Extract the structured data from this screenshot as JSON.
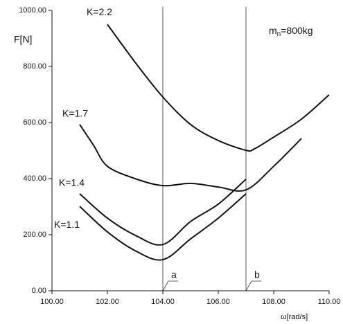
{
  "chart_data": {
    "type": "line",
    "y_label": "F[N]",
    "x_label": "ω[rad/s]",
    "annotation": {
      "main": "m",
      "sub": "n",
      "rest": "=800kg"
    },
    "markers": [
      {
        "x": 104,
        "label": "a"
      },
      {
        "x": 107,
        "label": "b"
      }
    ],
    "xlim": [
      100,
      110
    ],
    "xticks": [
      {
        "value": 100,
        "label": "100.00"
      },
      {
        "value": 102,
        "label": "102.00"
      },
      {
        "value": 104,
        "label": "104.00"
      },
      {
        "value": 106,
        "label": "106.00"
      },
      {
        "value": 108,
        "label": "108.00"
      },
      {
        "value": 110,
        "label": "110.00"
      }
    ],
    "ylim": [
      0,
      1000
    ],
    "yticks": [
      {
        "value": 0,
        "label": "0.00"
      },
      {
        "value": 200,
        "label": "200.00"
      },
      {
        "value": 400,
        "label": "400.00"
      },
      {
        "value": 600,
        "label": "600.00"
      },
      {
        "value": 800,
        "label": "800.00"
      },
      {
        "value": 1000,
        "label": "1000.00"
      }
    ],
    "series": [
      {
        "name": "K=2.2",
        "color": "#111111",
        "x": [
          102,
          103,
          104,
          105,
          106,
          107,
          107.3,
          108,
          109,
          110
        ],
        "values": [
          950,
          815,
          691,
          593,
          536,
          501,
          506,
          548,
          612,
          699
        ]
      },
      {
        "name": "K=1.7",
        "color": "#111111",
        "x": [
          101,
          101.5,
          102,
          103,
          104,
          105,
          106,
          107,
          108,
          109
        ],
        "values": [
          593,
          519,
          444,
          400,
          375,
          383,
          370,
          360,
          444,
          543
        ]
      },
      {
        "name": "K=1.4",
        "color": "#111111",
        "x": [
          101,
          102,
          103,
          104,
          105,
          106,
          107
        ],
        "values": [
          346,
          259,
          198,
          165,
          247,
          309,
          398
        ]
      },
      {
        "name": "K=1.1",
        "color": "#111111",
        "x": [
          101,
          102,
          103,
          104,
          105,
          106,
          107
        ],
        "values": [
          301,
          210,
          143,
          111,
          185,
          259,
          346
        ]
      }
    ]
  }
}
